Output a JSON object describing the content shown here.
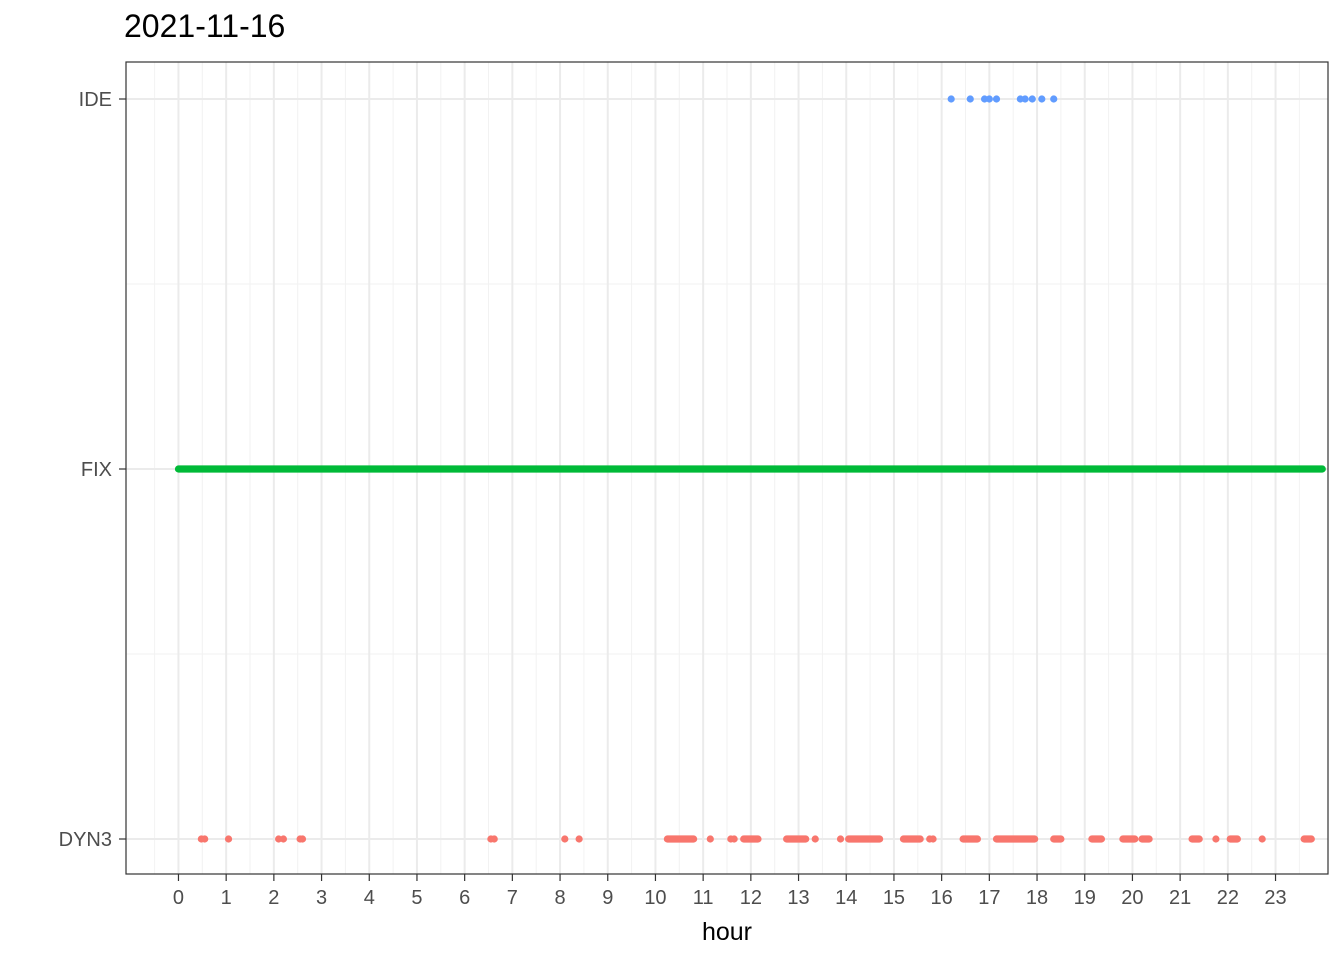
{
  "chart_data": {
    "type": "scatter",
    "title": "2021-11-16",
    "xlabel": "hour",
    "ylabel": "",
    "xlim": [
      -1.1,
      24.1
    ],
    "x_ticks": [
      "0",
      "1",
      "2",
      "3",
      "4",
      "5",
      "6",
      "7",
      "8",
      "9",
      "10",
      "11",
      "12",
      "13",
      "14",
      "15",
      "16",
      "17",
      "18",
      "19",
      "20",
      "21",
      "22",
      "23"
    ],
    "y_categories": [
      "DYN3",
      "FIX",
      "IDE"
    ],
    "grid": true,
    "legend": "none",
    "series": [
      {
        "category": "IDE",
        "color": "#619CFF",
        "points": [
          16.2,
          16.6,
          16.9,
          17.0,
          17.15,
          17.65,
          17.75,
          17.9,
          18.1,
          18.35
        ]
      },
      {
        "category": "FIX",
        "color": "#00BA38",
        "ranges": [
          [
            0.0,
            23.98
          ]
        ]
      },
      {
        "category": "DYN3",
        "color": "#F8766D",
        "points": [
          0.48,
          0.55,
          1.05,
          2.1,
          2.2,
          2.55,
          2.6,
          6.55,
          6.62,
          8.1,
          8.4,
          11.15,
          11.58,
          11.65,
          13.35,
          13.88,
          15.75,
          15.82,
          21.75,
          22.72
        ],
        "ranges": [
          [
            10.25,
            10.8
          ],
          [
            11.85,
            12.15
          ],
          [
            12.75,
            13.15
          ],
          [
            14.05,
            14.7
          ],
          [
            15.2,
            15.55
          ],
          [
            16.45,
            16.75
          ],
          [
            17.15,
            17.95
          ],
          [
            18.35,
            18.5
          ],
          [
            19.15,
            19.35
          ],
          [
            19.8,
            20.05
          ],
          [
            20.2,
            20.35
          ],
          [
            21.25,
            21.4
          ],
          [
            22.05,
            22.2
          ],
          [
            23.6,
            23.75
          ]
        ]
      }
    ]
  }
}
